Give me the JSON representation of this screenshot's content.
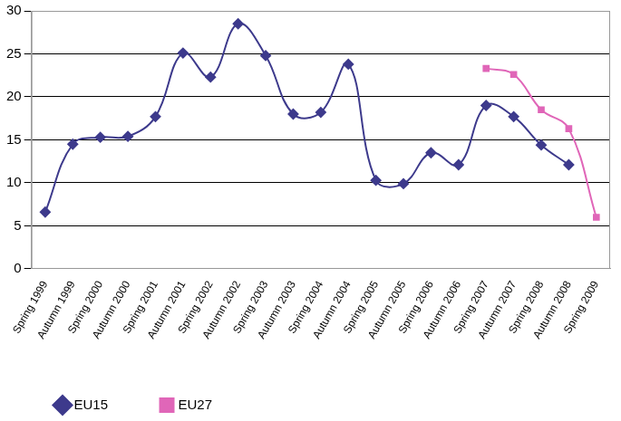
{
  "chart_data": {
    "type": "line",
    "categories": [
      "Spring 1999",
      "Autumn 1999",
      "Spring 2000",
      "Autumn 2000",
      "Spring 2001",
      "Autumn 2001",
      "Spring 2002",
      "Autumn 2002",
      "Spring 2003",
      "Autumn 2003",
      "Spring 2004",
      "Autumn 2004",
      "Spring 2005",
      "Autumn 2005",
      "Spring 2006",
      "Autumn 2006",
      "Spring 2007",
      "Autumn 2007",
      "Spring 2008",
      "Autumn 2008",
      "Spring 2009"
    ],
    "series": [
      {
        "name": "EU15",
        "color": "#3d3a8c",
        "marker": "diamond",
        "values": [
          6.6,
          14.5,
          15.3,
          15.4,
          17.7,
          25.1,
          22.3,
          28.5,
          24.8,
          18.0,
          18.2,
          23.8,
          10.3,
          9.9,
          13.5,
          12.1,
          19.0,
          17.7,
          14.4,
          12.1,
          null
        ]
      },
      {
        "name": "EU27",
        "color": "#e066b8",
        "marker": "square",
        "values": [
          null,
          null,
          null,
          null,
          null,
          null,
          null,
          null,
          null,
          null,
          null,
          null,
          null,
          null,
          null,
          null,
          23.3,
          22.6,
          18.5,
          16.3,
          6.0
        ]
      }
    ],
    "ylim": [
      0,
      30
    ],
    "yticks": [
      0,
      5,
      10,
      15,
      20,
      25,
      30
    ],
    "grid": true,
    "legend": "bottom-left"
  }
}
